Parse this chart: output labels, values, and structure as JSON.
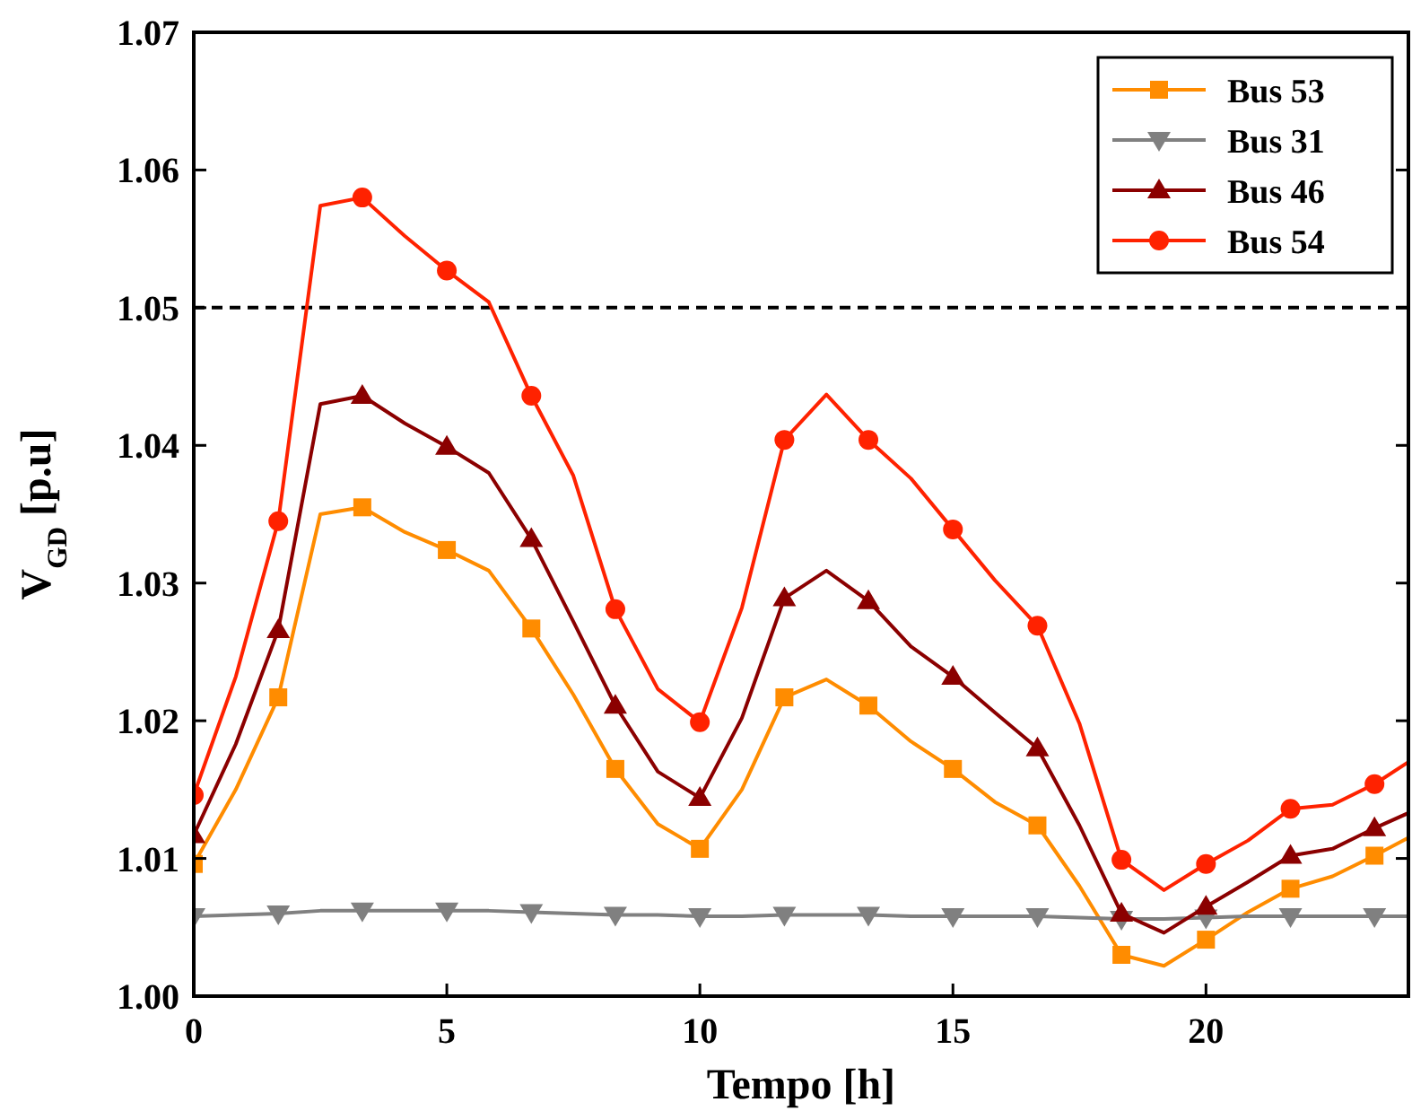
{
  "chart_data": {
    "type": "line",
    "xlabel": "Tempo [h]",
    "ylabel": "V$_{GD}$ [p.u]",
    "x": [
      0,
      0.83,
      1.67,
      2.5,
      3.33,
      4.17,
      5,
      5.83,
      6.67,
      7.5,
      8.33,
      9.17,
      10,
      10.83,
      11.67,
      12.5,
      13.33,
      14.17,
      15,
      15.83,
      16.67,
      17.5,
      18.33,
      19.17,
      20,
      20.83,
      21.67,
      22.5,
      23.33,
      24
    ],
    "xlim": [
      0,
      24
    ],
    "xticks": [
      0,
      5,
      10,
      15,
      20
    ],
    "ylim": [
      1.0,
      1.07
    ],
    "yticks": [
      {
        "value": 1.0,
        "label": "1.00"
      },
      {
        "value": 1.01,
        "label": "1.01"
      },
      {
        "value": 1.02,
        "label": "1.02"
      },
      {
        "value": 1.03,
        "label": "1.03"
      },
      {
        "value": 1.04,
        "label": "1.04"
      },
      {
        "value": 1.05,
        "label": "1.05"
      },
      {
        "value": 1.06,
        "label": "1.06"
      },
      {
        "value": 1.07,
        "label": "1.07"
      }
    ],
    "grid": false,
    "legend": "top right",
    "line_style": "solid",
    "ref_lines": [
      {
        "axis": "y",
        "value": 1.05,
        "color": "#000000",
        "line_style": "dashed"
      }
    ],
    "series": [
      {
        "name": "Bus 53",
        "color": "#ff8c00",
        "marker": "square",
        "values": [
          1.0096,
          1.015,
          1.0217,
          1.035,
          1.0355,
          1.0337,
          1.0324,
          1.0309,
          1.0267,
          1.0219,
          1.0165,
          1.0125,
          1.0107,
          1.015,
          1.0217,
          1.023,
          1.0211,
          1.0185,
          1.0165,
          1.0141,
          1.0124,
          1.008,
          1.003,
          1.0022,
          1.0041,
          1.0061,
          1.0078,
          1.0087,
          1.0102,
          1.0115
        ]
      },
      {
        "name": "Bus 31",
        "color": "#808080",
        "marker": "triangle-down",
        "values": [
          1.0058,
          1.0059,
          1.006,
          1.0062,
          1.0062,
          1.0062,
          1.0062,
          1.0062,
          1.0061,
          1.006,
          1.0059,
          1.0059,
          1.0058,
          1.0058,
          1.0059,
          1.0059,
          1.0059,
          1.0058,
          1.0058,
          1.0058,
          1.0058,
          1.0057,
          1.0056,
          1.0056,
          1.0057,
          1.0058,
          1.0058,
          1.0058,
          1.0058,
          1.0058
        ]
      },
      {
        "name": "Bus 46",
        "color": "#8b0000",
        "marker": "triangle",
        "values": [
          1.0117,
          1.0183,
          1.0266,
          1.043,
          1.0436,
          1.0416,
          1.0399,
          1.038,
          1.0332,
          1.0272,
          1.0211,
          1.0163,
          1.0144,
          1.0202,
          1.0289,
          1.0309,
          1.0287,
          1.0254,
          1.0232,
          1.0206,
          1.018,
          1.0124,
          1.006,
          1.0046,
          1.0065,
          1.0083,
          1.0102,
          1.0107,
          1.0122,
          1.0133
        ]
      },
      {
        "name": "Bus 54",
        "color": "#ff2200",
        "marker": "circle",
        "values": [
          1.0146,
          1.0232,
          1.0345,
          1.0574,
          1.058,
          1.0552,
          1.0527,
          1.0504,
          1.0436,
          1.0378,
          1.0281,
          1.0223,
          1.0199,
          1.0282,
          1.0404,
          1.0437,
          1.0404,
          1.0376,
          1.0339,
          1.0302,
          1.0269,
          1.0198,
          1.0099,
          1.0077,
          1.0096,
          1.0113,
          1.0136,
          1.0139,
          1.0154,
          1.017
        ]
      }
    ]
  }
}
